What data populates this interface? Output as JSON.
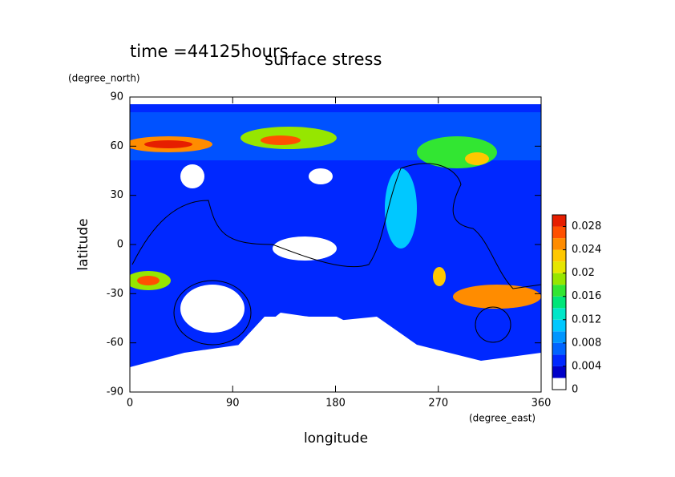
{
  "chart_data": {
    "type": "contour",
    "title": "surface stress",
    "subtitle": "time =44125hours",
    "xlabel": "longitude",
    "ylabel": "latitude",
    "xunit": "(degree_east)",
    "yunit": "(degree_north)",
    "xlim": [
      0,
      360
    ],
    "ylim": [
      -90,
      90
    ],
    "xticks": [
      0,
      90,
      180,
      270,
      360
    ],
    "yticks": [
      -90,
      -60,
      -30,
      0,
      30,
      60,
      90
    ],
    "colorbar": {
      "lim": [
        0,
        0.03
      ],
      "ticks": [
        0,
        0.004,
        0.008,
        0.012,
        0.016,
        0.02,
        0.024,
        0.028
      ],
      "levels": [
        0,
        0.002,
        0.004,
        0.006,
        0.008,
        0.01,
        0.012,
        0.014,
        0.016,
        0.018,
        0.02,
        0.022,
        0.024,
        0.026,
        0.028,
        0.03
      ],
      "colors": [
        "#ffffff",
        "#0000c8",
        "#0028ff",
        "#0064ff",
        "#0096ff",
        "#00c8ff",
        "#00e6c8",
        "#00e678",
        "#32e632",
        "#96e600",
        "#e6e600",
        "#ffc800",
        "#ff8c00",
        "#ff5000",
        "#e61e00"
      ]
    }
  }
}
